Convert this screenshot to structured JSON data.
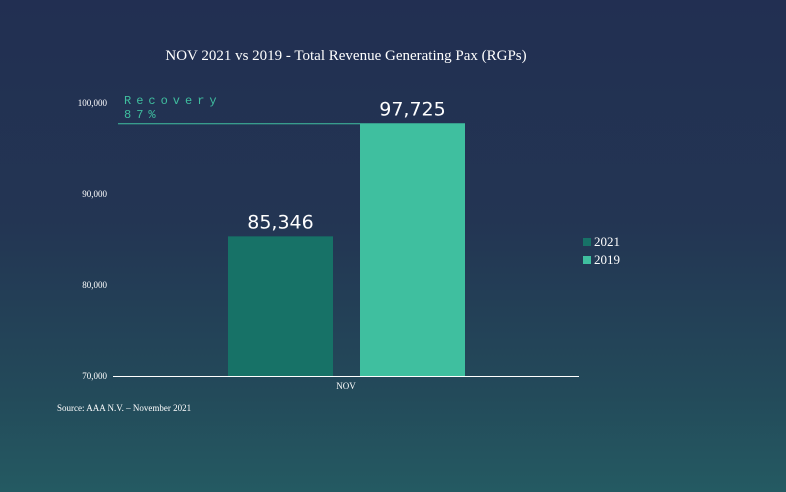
{
  "chart_data": {
    "type": "bar",
    "title": "NOV 2021 vs 2019 - Total Revenue Generating Pax (RGPs)",
    "categories": [
      "NOV"
    ],
    "series": [
      {
        "name": "2021",
        "values": [
          85346
        ],
        "label": "85,346",
        "color": "#177267"
      },
      {
        "name": "2019",
        "values": [
          97725
        ],
        "label": "97,725",
        "color": "#3fbf9f"
      }
    ],
    "ylim": [
      70000,
      100000
    ],
    "yticks": [
      70000,
      80000,
      90000,
      100000
    ],
    "ytick_labels": [
      "70,000",
      "80,000",
      "90,000",
      "100,000"
    ],
    "xlabel": "",
    "ylabel": "",
    "legend_position": "right",
    "reference_line": {
      "value": 97725,
      "label_line1": "Recovery",
      "label_line2": "87%",
      "color": "#3fbf9f"
    }
  },
  "source": "Source: AAA N.V. – November 2021"
}
